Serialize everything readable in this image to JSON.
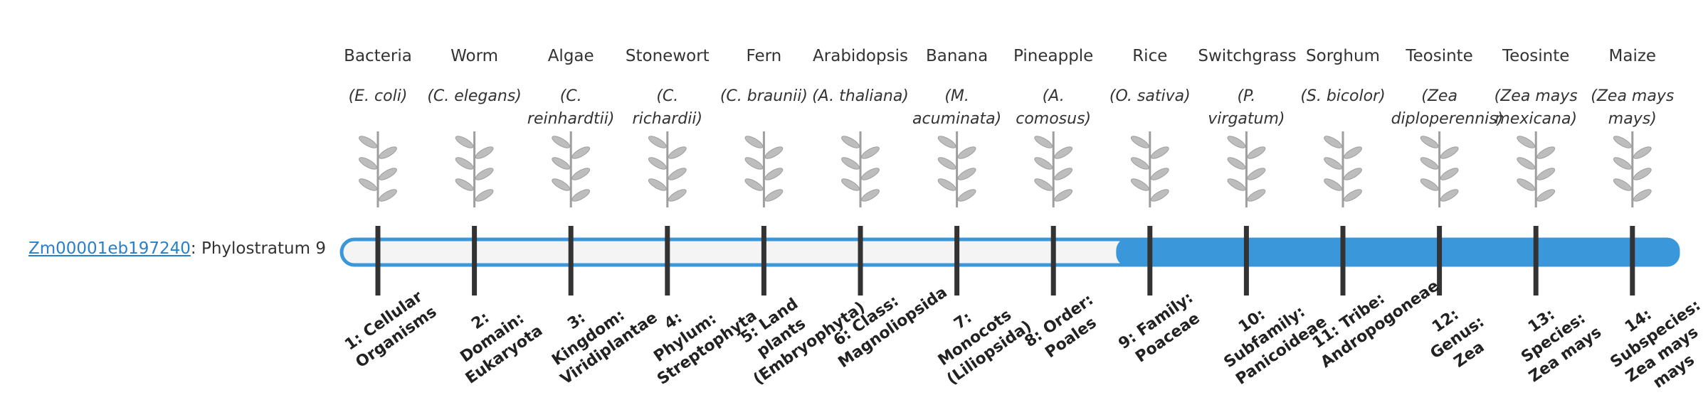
{
  "gene_id": "Zm00001eb197240",
  "stratum_prefix": ": Phylostratum",
  "phylostratum": 9,
  "organisms": [
    {
      "common": "Bacteria",
      "scientific": "(E. coli)",
      "stratum": "1: Cellular Organisms"
    },
    {
      "common": "Worm",
      "scientific": "(C. elegans)",
      "stratum": "2: Domain: Eukaryota"
    },
    {
      "common": "Algae",
      "scientific": "(C. reinhardtii)",
      "stratum": "3: Kingdom: Viridiplantae"
    },
    {
      "common": "Stonewort",
      "scientific": "(C. richardii)",
      "stratum": "4: Phylum: Streptophyta"
    },
    {
      "common": "Fern",
      "scientific": "(C. braunii)",
      "stratum": "5: Land plants (Embryophyta)"
    },
    {
      "common": "Arabidopsis",
      "scientific": "(A. thaliana)",
      "stratum": "6: Class: Magnoliopsida"
    },
    {
      "common": "Banana",
      "scientific": "(M. acuminata)",
      "stratum": "7: Monocots (Liliopsida)"
    },
    {
      "common": "Pineapple",
      "scientific": "(A. comosus)",
      "stratum": "8: Order: Poales"
    },
    {
      "common": "Rice",
      "scientific": "(O. sativa)",
      "stratum": "9: Family: Poaceae"
    },
    {
      "common": "Switchgrass",
      "scientific": "(P. virgatum)",
      "stratum": "10: Subfamily: Panicoideae"
    },
    {
      "common": "Sorghum",
      "scientific": "(S. bicolor)",
      "stratum": "11: Tribe: Andropogoneae"
    },
    {
      "common": "Teosinte",
      "scientific": "(Zea diploperennis)",
      "stratum": "12: Genus: Zea"
    },
    {
      "common": "Teosinte",
      "scientific": "(Zea mays mexicana)",
      "stratum": "13: Species: Zea mays"
    },
    {
      "common": "Maize",
      "scientific": "(Zea mays mays)",
      "stratum": "14: Subspecies: Zea mays mays"
    }
  ]
}
